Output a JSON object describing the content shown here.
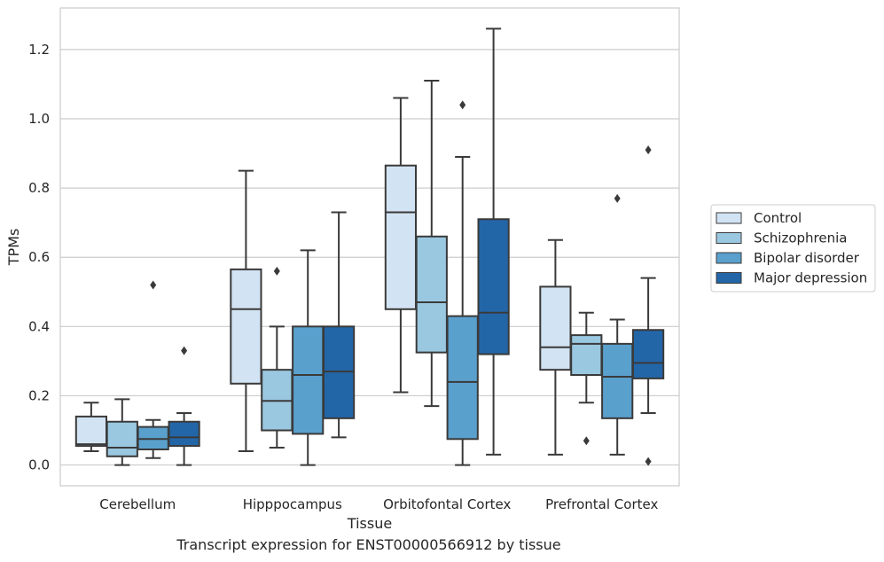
{
  "caption": "Transcript expression for ENST00000566912 by tissue",
  "chart_data": {
    "type": "boxplot",
    "xlabel": "Tissue",
    "ylabel": "TPMs",
    "ylim": [
      -0.06,
      1.32
    ],
    "yticks": [
      0.0,
      0.2,
      0.4,
      0.6,
      0.8,
      1.0,
      1.2
    ],
    "ytick_labels": [
      "0.0",
      "0.2",
      "0.4",
      "0.6",
      "0.8",
      "1.0",
      "1.2"
    ],
    "grid": "horizontal",
    "legend_position": "right",
    "categories": [
      "Cerebellum",
      "Hipppocampus",
      "Orbitofontal Cortex",
      "Prefrontal Cortex"
    ],
    "series": [
      {
        "name": "Control",
        "color": "#d2e3f3",
        "boxes": [
          {
            "whislo": 0.04,
            "q1": 0.055,
            "med": 0.06,
            "q3": 0.14,
            "whishi": 0.18,
            "fliers": []
          },
          {
            "whislo": 0.04,
            "q1": 0.235,
            "med": 0.45,
            "q3": 0.565,
            "whishi": 0.85,
            "fliers": []
          },
          {
            "whislo": 0.21,
            "q1": 0.45,
            "med": 0.73,
            "q3": 0.865,
            "whishi": 1.06,
            "fliers": []
          },
          {
            "whislo": 0.03,
            "q1": 0.275,
            "med": 0.34,
            "q3": 0.515,
            "whishi": 0.65,
            "fliers": []
          }
        ]
      },
      {
        "name": "Schizophrenia",
        "color": "#9ac8e0",
        "boxes": [
          {
            "whislo": 0.0,
            "q1": 0.025,
            "med": 0.05,
            "q3": 0.125,
            "whishi": 0.19,
            "fliers": []
          },
          {
            "whislo": 0.05,
            "q1": 0.1,
            "med": 0.185,
            "q3": 0.275,
            "whishi": 0.4,
            "fliers": [
              0.56
            ]
          },
          {
            "whislo": 0.17,
            "q1": 0.325,
            "med": 0.47,
            "q3": 0.66,
            "whishi": 1.11,
            "fliers": []
          },
          {
            "whislo": 0.18,
            "q1": 0.26,
            "med": 0.35,
            "q3": 0.375,
            "whishi": 0.44,
            "fliers": [
              0.07
            ]
          }
        ]
      },
      {
        "name": "Bipolar disorder",
        "color": "#5aa0cd",
        "boxes": [
          {
            "whislo": 0.02,
            "q1": 0.045,
            "med": 0.075,
            "q3": 0.11,
            "whishi": 0.13,
            "fliers": [
              0.52
            ]
          },
          {
            "whislo": 0.0,
            "q1": 0.09,
            "med": 0.26,
            "q3": 0.4,
            "whishi": 0.62,
            "fliers": []
          },
          {
            "whislo": 0.0,
            "q1": 0.075,
            "med": 0.24,
            "q3": 0.43,
            "whishi": 0.89,
            "fliers": [
              1.04
            ]
          },
          {
            "whislo": 0.03,
            "q1": 0.135,
            "med": 0.255,
            "q3": 0.35,
            "whishi": 0.42,
            "fliers": [
              0.77
            ]
          }
        ]
      },
      {
        "name": "Major depression",
        "color": "#2366a8",
        "boxes": [
          {
            "whislo": 0.0,
            "q1": 0.055,
            "med": 0.08,
            "q3": 0.125,
            "whishi": 0.15,
            "fliers": [
              0.33
            ]
          },
          {
            "whislo": 0.08,
            "q1": 0.135,
            "med": 0.27,
            "q3": 0.4,
            "whishi": 0.73,
            "fliers": []
          },
          {
            "whislo": 0.03,
            "q1": 0.32,
            "med": 0.44,
            "q3": 0.71,
            "whishi": 1.26,
            "fliers": []
          },
          {
            "whislo": 0.15,
            "q1": 0.25,
            "med": 0.295,
            "q3": 0.39,
            "whishi": 0.54,
            "fliers": [
              0.91,
              0.01
            ]
          }
        ]
      }
    ]
  }
}
